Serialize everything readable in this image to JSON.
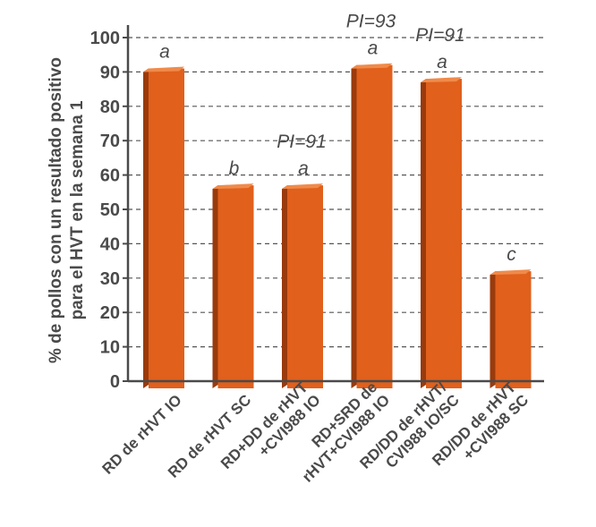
{
  "chart_data": {
    "type": "bar",
    "ylabel_lines": [
      "% de pollos con un resultado positivo",
      "para el HVT en la semana 1"
    ],
    "ylim": [
      0,
      100
    ],
    "yticks": [
      0,
      10,
      20,
      30,
      40,
      50,
      60,
      70,
      80,
      90,
      100
    ],
    "grid": true,
    "colors": {
      "bar_front": "#e0601c",
      "bar_side": "#9a3a0c",
      "bar_top": "#f08a4a",
      "axis": "#4a4a4a",
      "grid": "#555555"
    },
    "bars": [
      {
        "category_lines": [
          "RD de rHVT IO"
        ],
        "value": 91,
        "letter": "a",
        "pi": ""
      },
      {
        "category_lines": [
          "RD de rHVT SC"
        ],
        "value": 57,
        "letter": "b",
        "pi": ""
      },
      {
        "category_lines": [
          "RD+DD de rHVT",
          "+CVI988 IO"
        ],
        "value": 57,
        "letter": "a",
        "pi": "PI=91"
      },
      {
        "category_lines": [
          "RD+SRD de",
          "rHVT+CVI988 IO"
        ],
        "value": 92,
        "letter": "a",
        "pi": "PI=93"
      },
      {
        "category_lines": [
          "RD/DD de rHVT/",
          "CVI988 IO/SC"
        ],
        "value": 88,
        "letter": "a",
        "pi": "PI=91"
      },
      {
        "category_lines": [
          "RD/DD de rHVT",
          "+CVI988 SC"
        ],
        "value": 32,
        "letter": "c",
        "pi": ""
      }
    ]
  }
}
